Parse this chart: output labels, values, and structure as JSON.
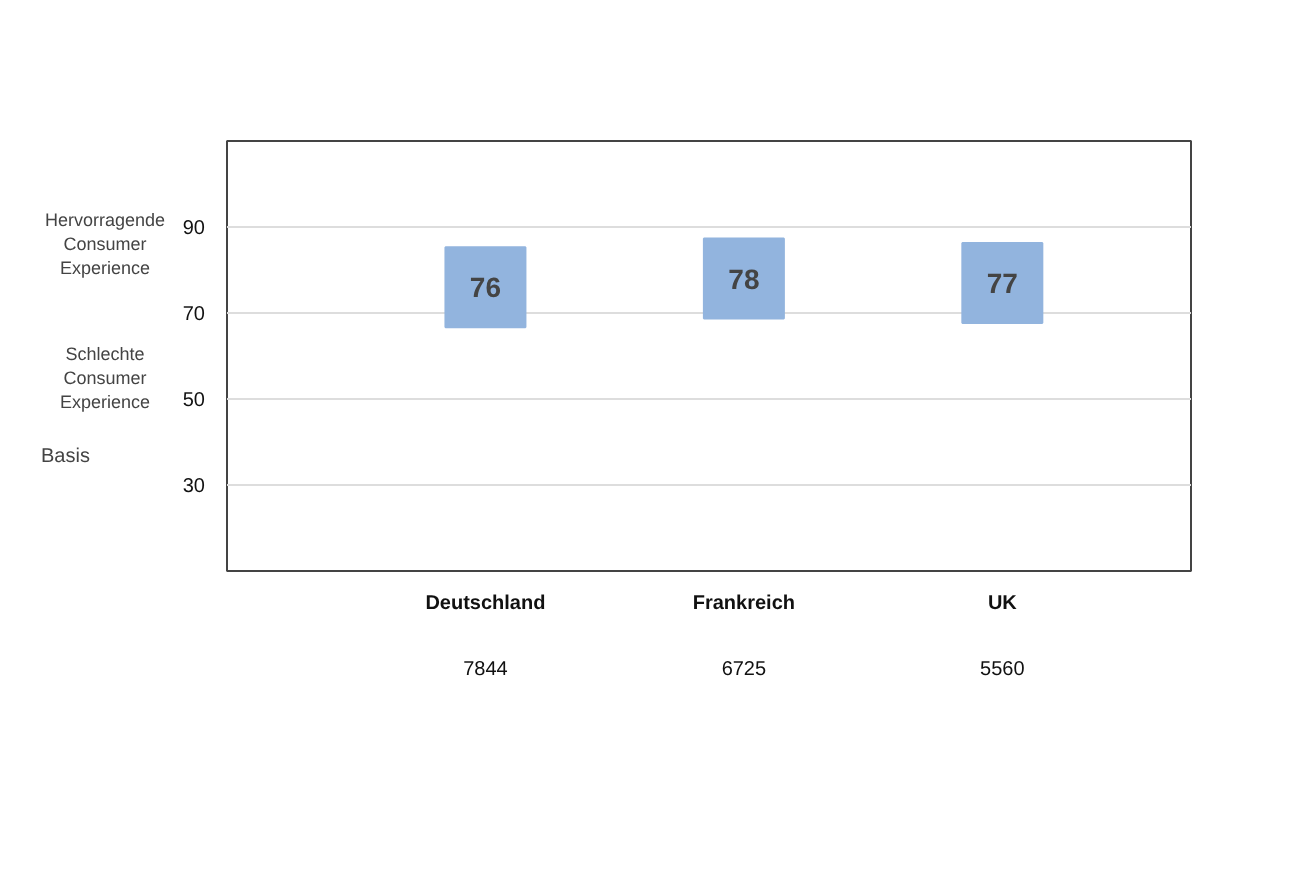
{
  "chart_data": {
    "type": "scatter",
    "categories": [
      "Deutschland",
      "Frankreich",
      "UK"
    ],
    "values": [
      76,
      78,
      77
    ],
    "color": "#92b4de",
    "marker": "square",
    "data_labels": true,
    "ylim": [
      10,
      110
    ],
    "yticks": [
      30,
      50,
      70,
      90
    ],
    "grid": "y",
    "annotations": [
      "Hervorragende\nConsumer\nExperience",
      "Schlechte\nConsumer\nExperience",
      "Basis",
      "7844",
      "6725",
      "5560"
    ]
  }
}
